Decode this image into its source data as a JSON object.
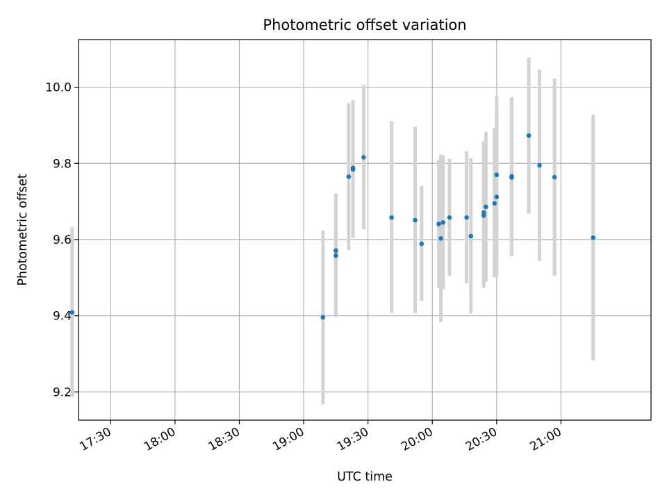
{
  "chart_data": {
    "type": "scatter",
    "title": "Photometric offset variation",
    "xlabel": "UTC time",
    "ylabel": "Photometric offset",
    "x_unit": "HH:MM UTC",
    "xlim": [
      "17:15",
      "21:42"
    ],
    "ylim": [
      9.126,
      10.125
    ],
    "x_ticks": [
      "17:30",
      "18:00",
      "18:30",
      "19:00",
      "19:30",
      "20:00",
      "20:30",
      "21:00"
    ],
    "y_ticks": [
      "9.2",
      "9.4",
      "9.6",
      "9.8",
      "10.0"
    ],
    "grid": true,
    "colors": {
      "marker": "#1f77b4",
      "errorbar": "#d3d3d3",
      "grid": "#b0b0b0"
    },
    "points": [
      {
        "x": "17:12",
        "y": 9.409,
        "ylow": 9.187,
        "yhigh": 9.632
      },
      {
        "x": "19:09",
        "y": 9.396,
        "ylow": 9.168,
        "yhigh": 9.624
      },
      {
        "x": "19:15",
        "y": 9.571,
        "ylow": 9.421,
        "yhigh": 9.721
      },
      {
        "x": "19:15",
        "y": 9.558,
        "ylow": 9.397,
        "yhigh": 9.72
      },
      {
        "x": "19:21",
        "y": 9.765,
        "ylow": 9.572,
        "yhigh": 9.958
      },
      {
        "x": "19:23",
        "y": 9.784,
        "ylow": 9.604,
        "yhigh": 9.964
      },
      {
        "x": "19:23",
        "y": 9.788,
        "ylow": 9.61,
        "yhigh": 9.966
      },
      {
        "x": "19:28",
        "y": 9.816,
        "ylow": 9.627,
        "yhigh": 10.005
      },
      {
        "x": "19:41",
        "y": 9.658,
        "ylow": 9.407,
        "yhigh": 9.911
      },
      {
        "x": "19:52",
        "y": 9.651,
        "ylow": 9.407,
        "yhigh": 9.896
      },
      {
        "x": "19:55",
        "y": 9.589,
        "ylow": 9.439,
        "yhigh": 9.74
      },
      {
        "x": "20:03",
        "y": 9.641,
        "ylow": 9.473,
        "yhigh": 9.81
      },
      {
        "x": "20:04",
        "y": 9.603,
        "ylow": 9.383,
        "yhigh": 9.823
      },
      {
        "x": "20:05",
        "y": 9.645,
        "ylow": 9.469,
        "yhigh": 9.821
      },
      {
        "x": "20:08",
        "y": 9.658,
        "ylow": 9.505,
        "yhigh": 9.812
      },
      {
        "x": "20:16",
        "y": 9.658,
        "ylow": 9.485,
        "yhigh": 9.832
      },
      {
        "x": "20:18",
        "y": 9.609,
        "ylow": 9.406,
        "yhigh": 9.813
      },
      {
        "x": "20:24",
        "y": 9.663,
        "ylow": 9.473,
        "yhigh": 9.849
      },
      {
        "x": "20:24",
        "y": 9.671,
        "ylow": 9.483,
        "yhigh": 9.858
      },
      {
        "x": "20:25",
        "y": 9.686,
        "ylow": 9.49,
        "yhigh": 9.883
      },
      {
        "x": "20:29",
        "y": 9.695,
        "ylow": 9.501,
        "yhigh": 9.892
      },
      {
        "x": "20:30",
        "y": 9.712,
        "ylow": 9.503,
        "yhigh": 9.921
      },
      {
        "x": "20:30",
        "y": 9.77,
        "ylow": 9.562,
        "yhigh": 9.976
      },
      {
        "x": "20:37",
        "y": 9.766,
        "ylow": 9.557,
        "yhigh": 9.974
      },
      {
        "x": "20:37",
        "y": 9.763,
        "ylow": 9.558,
        "yhigh": 9.97
      },
      {
        "x": "20:45",
        "y": 9.873,
        "ylow": 9.668,
        "yhigh": 10.078
      },
      {
        "x": "20:50",
        "y": 9.795,
        "ylow": 9.544,
        "yhigh": 10.046
      },
      {
        "x": "20:57",
        "y": 9.764,
        "ylow": 9.505,
        "yhigh": 10.022
      },
      {
        "x": "21:15",
        "y": 9.605,
        "ylow": 9.283,
        "yhigh": 9.928
      }
    ]
  }
}
